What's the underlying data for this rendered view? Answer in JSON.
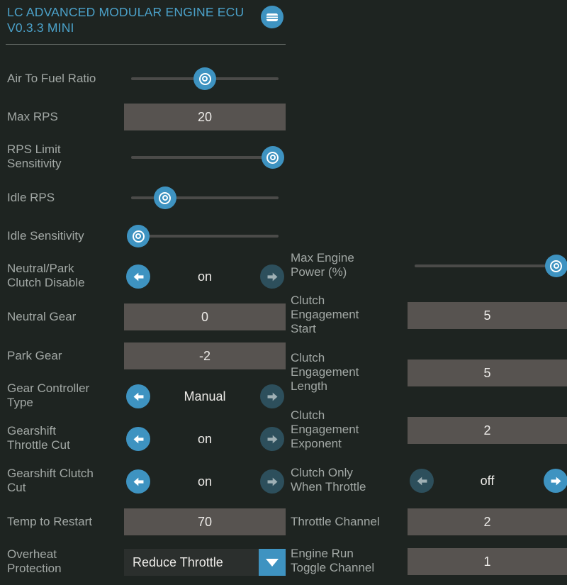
{
  "header": {
    "title": "LC ADVANCED MODULAR ENGINE ECU V0.3.3 MINI",
    "icon": "microcontroller-icon",
    "title_color": "#4ba1c9"
  },
  "colors": {
    "background": "#1e2421",
    "accent_blue": "#3e93c1",
    "dim_button": "#2d4f5c",
    "input_box": "#575350",
    "label_text": "#a2a8a5",
    "value_text": "#edebe8"
  },
  "left_column": {
    "rows": [
      {
        "label": "Air To Fuel Ratio",
        "type": "slider",
        "value_pct": 50
      },
      {
        "label": "Max RPS",
        "type": "number",
        "value": "20"
      },
      {
        "label": "RPS Limit\nSensitivity",
        "type": "slider",
        "value_pct": 96
      },
      {
        "label": "Idle RPS",
        "type": "slider",
        "value_pct": 23
      },
      {
        "label": "Idle Sensitivity",
        "type": "slider",
        "value_pct": 5
      },
      {
        "label": "Neutral/Park\nClutch Disable",
        "type": "selector",
        "value": "on",
        "active_arrow": "left"
      },
      {
        "label": "Neutral Gear",
        "type": "number",
        "value": "0"
      },
      {
        "label": "Park Gear",
        "type": "number",
        "value": "-2"
      },
      {
        "label": "Gear Controller\nType",
        "type": "selector",
        "value": "Manual",
        "active_arrow": "left"
      },
      {
        "label": "Gearshift\nThrottle Cut",
        "type": "selector",
        "value": "on",
        "active_arrow": "left"
      },
      {
        "label": "Gearshift Clutch\nCut",
        "type": "selector",
        "value": "on",
        "active_arrow": "left"
      },
      {
        "label": "Temp to Restart",
        "type": "number",
        "value": "70"
      },
      {
        "label": "Overheat\nProtection",
        "type": "dropdown",
        "value": "Reduce Throttle"
      }
    ]
  },
  "right_column": {
    "rows": [
      {
        "label": "Max Engine\nPower (%)",
        "type": "slider",
        "value_pct": 96
      },
      {
        "label": "Clutch\nEngagement\nStart",
        "type": "number",
        "value": "5"
      },
      {
        "label": "Clutch\nEngagement\nLength",
        "type": "number",
        "value": "5"
      },
      {
        "label": "Clutch\nEngagement\nExponent",
        "type": "number",
        "value": "2"
      },
      {
        "label": "Clutch Only\nWhen Throttle",
        "type": "selector",
        "value": "off",
        "active_arrow": "right"
      },
      {
        "label": "Throttle Channel",
        "type": "number",
        "value": "2"
      },
      {
        "label": "Engine Run\nToggle Channel",
        "type": "number",
        "value": "1"
      }
    ]
  }
}
